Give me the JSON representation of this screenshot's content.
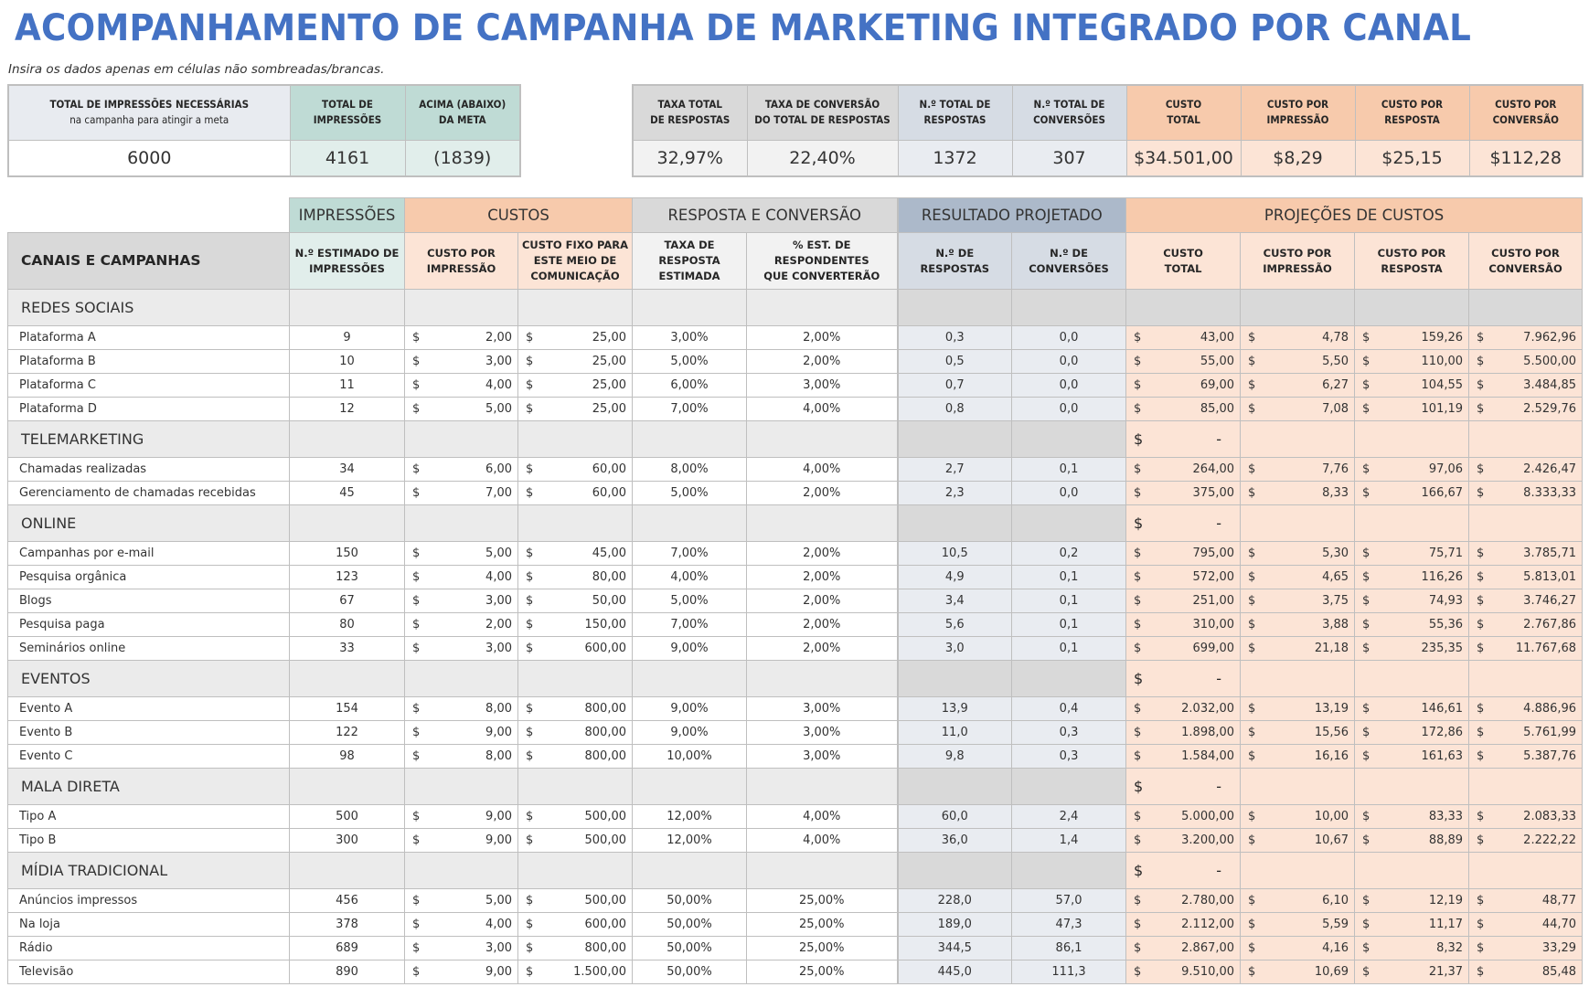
{
  "title": "ACOMPANHAMENTO DE CAMPANHA DE MARKETING INTEGRADO POR CANAL",
  "subtitle": "Insira os dados apenas em células não sombreadas/brancas.",
  "summary_left": {
    "headers": [
      {
        "line1": "TOTAL DE IMPRESSÕES NECESSÁRIAS",
        "line2": "na campanha para atingir a meta"
      },
      {
        "line1": "TOTAL DE",
        "line2": "IMPRESSÕES"
      },
      {
        "line1": "ACIMA (ABAIXO)",
        "line2": "DA META"
      }
    ],
    "values": [
      "6000",
      "4161",
      "(1839)"
    ]
  },
  "summary_right": {
    "headers": [
      {
        "line1": "TAXA TOTAL",
        "line2": "DE RESPOSTAS"
      },
      {
        "line1": "TAXA DE CONVERSÃO",
        "line2": "DO TOTAL DE RESPOSTAS"
      },
      {
        "line1": "N.º TOTAL DE",
        "line2": "RESPOSTAS"
      },
      {
        "line1": "N.º TOTAL DE",
        "line2": "CONVERSÕES"
      },
      {
        "line1": "CUSTO",
        "line2": "TOTAL"
      },
      {
        "line1": "CUSTO POR",
        "line2": "IMPRESSÃO"
      },
      {
        "line1": "CUSTO POR",
        "line2": "RESPOSTA"
      },
      {
        "line1": "CUSTO POR",
        "line2": "CONVERSÃO"
      }
    ],
    "values": [
      "32,97%",
      "22,40%",
      "1372",
      "307",
      "$34.501,00",
      "$8,29",
      "$25,15",
      "$112,28"
    ]
  },
  "table": {
    "groups": [
      "IMPRESSÕES",
      "CUSTOS",
      "RESPOSTA E CONVERSÃO",
      "RESULTADO PROJETADO",
      "PROJEÇÕES DE CUSTOS"
    ],
    "columns": [
      {
        "line1": "CANAIS E CAMPANHAS",
        "line2": ""
      },
      {
        "line1": "N.º ESTIMADO DE",
        "line2": "IMPRESSÕES"
      },
      {
        "line1": "CUSTO POR",
        "line2": "IMPRESSÃO"
      },
      {
        "line1": "CUSTO FIXO PARA ESTE MEIO DE",
        "line2": "COMUNICAÇÃO"
      },
      {
        "line1": "TAXA DE RESPOSTA",
        "line2": "ESTIMADA"
      },
      {
        "line1": "% EST. DE RESPONDENTES",
        "line2": "QUE CONVERTERÃO"
      },
      {
        "line1": "N.º DE",
        "line2": "RESPOSTAS"
      },
      {
        "line1": "N.º DE",
        "line2": "CONVERSÕES"
      },
      {
        "line1": "CUSTO",
        "line2": "TOTAL"
      },
      {
        "line1": "CUSTO POR",
        "line2": "IMPRESSÃO"
      },
      {
        "line1": "CUSTO POR",
        "line2": "RESPOSTA"
      },
      {
        "line1": "CUSTO POR",
        "line2": "CONVERSÃO"
      }
    ],
    "currency": "$",
    "dash": "-",
    "sections": [
      {
        "name": "REDES SOCIAIS",
        "section_total": "",
        "rows": [
          {
            "name": "Plataforma A",
            "impressions": "9",
            "cpi": "2,00",
            "fixed": "25,00",
            "resp_rate": "3,00%",
            "conv_rate": "2,00%",
            "responses": "0,3",
            "conversions": "0,0",
            "total": "43,00",
            "p_cpi": "4,78",
            "p_cpr": "159,26",
            "p_cpc": "7.962,96"
          },
          {
            "name": "Plataforma B",
            "impressions": "10",
            "cpi": "3,00",
            "fixed": "25,00",
            "resp_rate": "5,00%",
            "conv_rate": "2,00%",
            "responses": "0,5",
            "conversions": "0,0",
            "total": "55,00",
            "p_cpi": "5,50",
            "p_cpr": "110,00",
            "p_cpc": "5.500,00"
          },
          {
            "name": "Plataforma C",
            "impressions": "11",
            "cpi": "4,00",
            "fixed": "25,00",
            "resp_rate": "6,00%",
            "conv_rate": "3,00%",
            "responses": "0,7",
            "conversions": "0,0",
            "total": "69,00",
            "p_cpi": "6,27",
            "p_cpr": "104,55",
            "p_cpc": "3.484,85"
          },
          {
            "name": "Plataforma D",
            "impressions": "12",
            "cpi": "5,00",
            "fixed": "25,00",
            "resp_rate": "7,00%",
            "conv_rate": "4,00%",
            "responses": "0,8",
            "conversions": "0,0",
            "total": "85,00",
            "p_cpi": "7,08",
            "p_cpr": "101,19",
            "p_cpc": "2.529,76"
          }
        ]
      },
      {
        "name": "TELEMARKETING",
        "section_total": "-",
        "rows": [
          {
            "name": "Chamadas realizadas",
            "impressions": "34",
            "cpi": "6,00",
            "fixed": "60,00",
            "resp_rate": "8,00%",
            "conv_rate": "4,00%",
            "responses": "2,7",
            "conversions": "0,1",
            "total": "264,00",
            "p_cpi": "7,76",
            "p_cpr": "97,06",
            "p_cpc": "2.426,47"
          },
          {
            "name": "Gerenciamento de chamadas recebidas",
            "impressions": "45",
            "cpi": "7,00",
            "fixed": "60,00",
            "resp_rate": "5,00%",
            "conv_rate": "2,00%",
            "responses": "2,3",
            "conversions": "0,0",
            "total": "375,00",
            "p_cpi": "8,33",
            "p_cpr": "166,67",
            "p_cpc": "8.333,33"
          }
        ]
      },
      {
        "name": "ONLINE",
        "section_total": "-",
        "rows": [
          {
            "name": "Campanhas por e-mail",
            "impressions": "150",
            "cpi": "5,00",
            "fixed": "45,00",
            "resp_rate": "7,00%",
            "conv_rate": "2,00%",
            "responses": "10,5",
            "conversions": "0,2",
            "total": "795,00",
            "p_cpi": "5,30",
            "p_cpr": "75,71",
            "p_cpc": "3.785,71"
          },
          {
            "name": "Pesquisa orgânica",
            "impressions": "123",
            "cpi": "4,00",
            "fixed": "80,00",
            "resp_rate": "4,00%",
            "conv_rate": "2,00%",
            "responses": "4,9",
            "conversions": "0,1",
            "total": "572,00",
            "p_cpi": "4,65",
            "p_cpr": "116,26",
            "p_cpc": "5.813,01"
          },
          {
            "name": "Blogs",
            "impressions": "67",
            "cpi": "3,00",
            "fixed": "50,00",
            "resp_rate": "5,00%",
            "conv_rate": "2,00%",
            "responses": "3,4",
            "conversions": "0,1",
            "total": "251,00",
            "p_cpi": "3,75",
            "p_cpr": "74,93",
            "p_cpc": "3.746,27"
          },
          {
            "name": "Pesquisa paga",
            "impressions": "80",
            "cpi": "2,00",
            "fixed": "150,00",
            "resp_rate": "7,00%",
            "conv_rate": "2,00%",
            "responses": "5,6",
            "conversions": "0,1",
            "total": "310,00",
            "p_cpi": "3,88",
            "p_cpr": "55,36",
            "p_cpc": "2.767,86"
          },
          {
            "name": "Seminários online",
            "impressions": "33",
            "cpi": "3,00",
            "fixed": "600,00",
            "resp_rate": "9,00%",
            "conv_rate": "2,00%",
            "responses": "3,0",
            "conversions": "0,1",
            "total": "699,00",
            "p_cpi": "21,18",
            "p_cpr": "235,35",
            "p_cpc": "11.767,68"
          }
        ]
      },
      {
        "name": "EVENTOS",
        "section_total": "-",
        "rows": [
          {
            "name": "Evento A",
            "impressions": "154",
            "cpi": "8,00",
            "fixed": "800,00",
            "resp_rate": "9,00%",
            "conv_rate": "3,00%",
            "responses": "13,9",
            "conversions": "0,4",
            "total": "2.032,00",
            "p_cpi": "13,19",
            "p_cpr": "146,61",
            "p_cpc": "4.886,96"
          },
          {
            "name": "Evento B",
            "impressions": "122",
            "cpi": "9,00",
            "fixed": "800,00",
            "resp_rate": "9,00%",
            "conv_rate": "3,00%",
            "responses": "11,0",
            "conversions": "0,3",
            "total": "1.898,00",
            "p_cpi": "15,56",
            "p_cpr": "172,86",
            "p_cpc": "5.761,99"
          },
          {
            "name": "Evento C",
            "impressions": "98",
            "cpi": "8,00",
            "fixed": "800,00",
            "resp_rate": "10,00%",
            "conv_rate": "3,00%",
            "responses": "9,8",
            "conversions": "0,3",
            "total": "1.584,00",
            "p_cpi": "16,16",
            "p_cpr": "161,63",
            "p_cpc": "5.387,76"
          }
        ]
      },
      {
        "name": "MALA DIRETA",
        "section_total": "-",
        "rows": [
          {
            "name": "Tipo A",
            "impressions": "500",
            "cpi": "9,00",
            "fixed": "500,00",
            "resp_rate": "12,00%",
            "conv_rate": "4,00%",
            "responses": "60,0",
            "conversions": "2,4",
            "total": "5.000,00",
            "p_cpi": "10,00",
            "p_cpr": "83,33",
            "p_cpc": "2.083,33"
          },
          {
            "name": "Tipo B",
            "impressions": "300",
            "cpi": "9,00",
            "fixed": "500,00",
            "resp_rate": "12,00%",
            "conv_rate": "4,00%",
            "responses": "36,0",
            "conversions": "1,4",
            "total": "3.200,00",
            "p_cpi": "10,67",
            "p_cpr": "88,89",
            "p_cpc": "2.222,22"
          }
        ]
      },
      {
        "name": "MÍDIA TRADICIONAL",
        "section_total": "-",
        "rows": [
          {
            "name": "Anúncios impressos",
            "impressions": "456",
            "cpi": "5,00",
            "fixed": "500,00",
            "resp_rate": "50,00%",
            "conv_rate": "25,00%",
            "responses": "228,0",
            "conversions": "57,0",
            "total": "2.780,00",
            "p_cpi": "6,10",
            "p_cpr": "12,19",
            "p_cpc": "48,77"
          },
          {
            "name": "Na loja",
            "impressions": "378",
            "cpi": "4,00",
            "fixed": "600,00",
            "resp_rate": "50,00%",
            "conv_rate": "25,00%",
            "responses": "189,0",
            "conversions": "47,3",
            "total": "2.112,00",
            "p_cpi": "5,59",
            "p_cpr": "11,17",
            "p_cpc": "44,70"
          },
          {
            "name": "Rádio",
            "impressions": "689",
            "cpi": "3,00",
            "fixed": "800,00",
            "resp_rate": "50,00%",
            "conv_rate": "25,00%",
            "responses": "344,5",
            "conversions": "86,1",
            "total": "2.867,00",
            "p_cpi": "4,16",
            "p_cpr": "8,32",
            "p_cpc": "33,29"
          },
          {
            "name": "Televisão",
            "impressions": "890",
            "cpi": "9,00",
            "fixed": "1.500,00",
            "resp_rate": "50,00%",
            "conv_rate": "25,00%",
            "responses": "445,0",
            "conversions": "111,3",
            "total": "9.510,00",
            "p_cpi": "10,69",
            "p_cpr": "21,37",
            "p_cpc": "85,48"
          }
        ]
      }
    ]
  },
  "colors": {
    "title": "#4472c4",
    "teal_header": "#bfdbd5",
    "peach_header": "#f7caac",
    "peach_cell": "#fce4d6",
    "slate_header": "#acb9ca",
    "gray_header": "#d9d9d9"
  }
}
